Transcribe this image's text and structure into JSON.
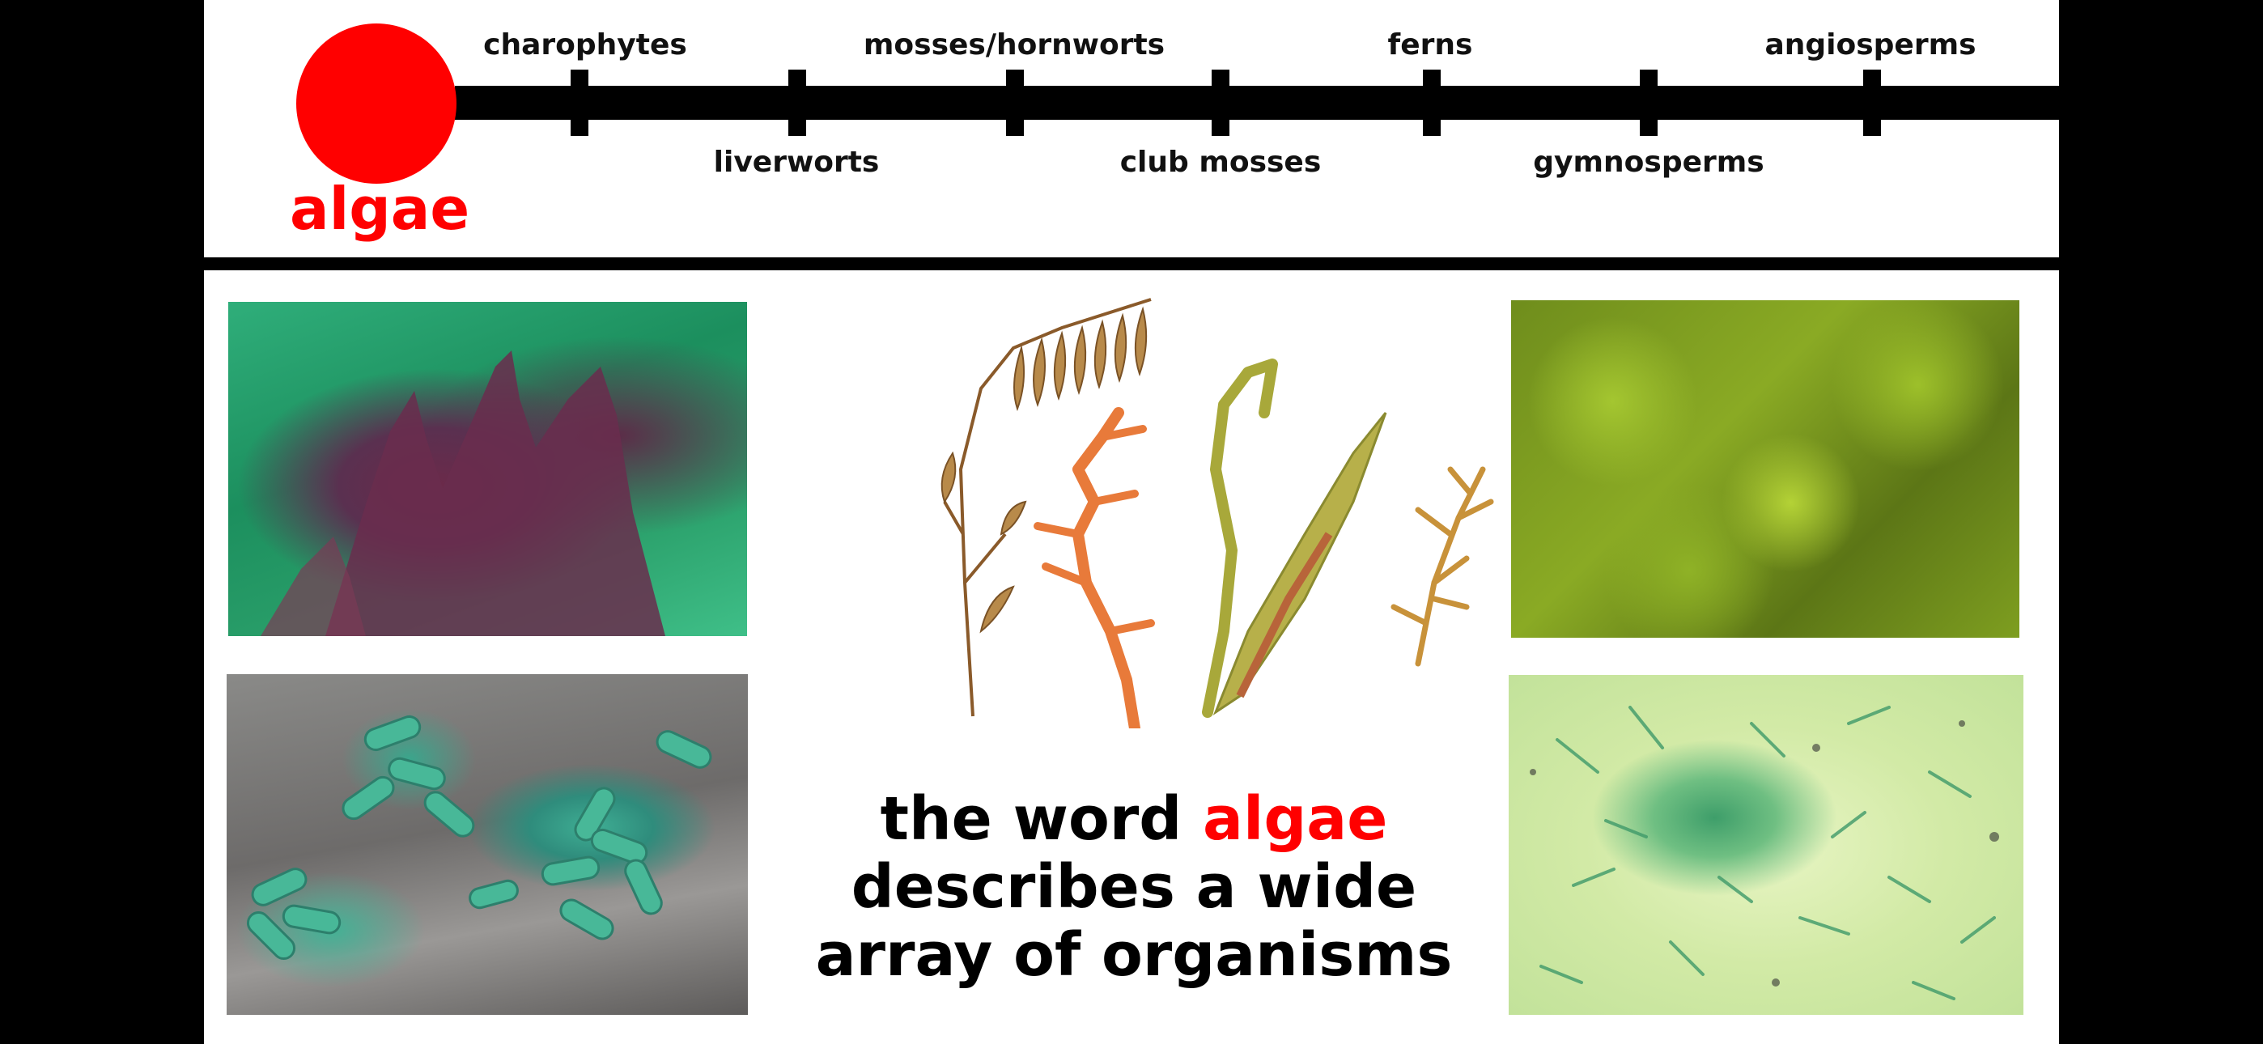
{
  "timeline": {
    "start_label": "algae",
    "upper_labels": [
      "charophytes",
      "mosses/hornworts",
      "ferns",
      "angiosperms"
    ],
    "lower_labels": [
      "liverworts",
      "club mosses",
      "gymnosperms"
    ],
    "accent_color": "#ff0000"
  },
  "photos": [
    {
      "name": "red-seaweed-photo"
    },
    {
      "name": "mossy-rocks-photo"
    },
    {
      "name": "green-bacteria-micrograph"
    },
    {
      "name": "microscope-algae-photo"
    }
  ],
  "caption": {
    "line1_prefix": "the word ",
    "line1_highlight": "algae",
    "line2": "describes a wide",
    "line3": "array of organisms"
  }
}
